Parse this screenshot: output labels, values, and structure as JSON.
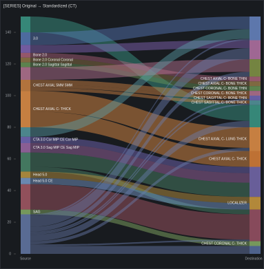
{
  "chart_data": {
    "type": "sankey",
    "title": "[SERIES] Original → Standardized (CT)",
    "columns": [
      "Source",
      "Destination"
    ],
    "ylim": [
      0,
      150
    ],
    "yticks": [
      0,
      20,
      40,
      60,
      80,
      100,
      120,
      140
    ],
    "sources": [
      {
        "name": null,
        "value": 10,
        "color": "#3fa28f"
      },
      {
        "name": "3.0",
        "value": 8,
        "color": "#5b7fbf"
      },
      {
        "name": null,
        "value": 5,
        "color": "#8a6bbf"
      },
      {
        "name": "Bone 2.0",
        "value": 3,
        "color": "#b4677e"
      },
      {
        "name": "Bone 2.0 Coronal Coronal",
        "value": 3,
        "color": "#9a7d4a"
      },
      {
        "name": "Bone 2.0 Sagittal Sagittal",
        "value": 3,
        "color": "#6e9c5a"
      },
      {
        "name": null,
        "value": 8,
        "color": "#c07b9a"
      },
      {
        "name": "CHEST AXIAL 5MM 5MM",
        "value": 7,
        "color": "#d98a45"
      },
      {
        "name": "CHEST AXIAL C- THICK",
        "value": 23,
        "color": "#f2994a"
      },
      {
        "name": null,
        "value": 6,
        "color": "#5aa0a8"
      },
      {
        "name": "CTA 3.0 Cor MIP CE Cor MIP",
        "value": 4,
        "color": "#7b6fc4"
      },
      {
        "name": "CTA 3.0 Sag MIP CE Sag MIP",
        "value": 6,
        "color": "#a86fb0"
      },
      {
        "name": null,
        "value": 12,
        "color": "#4f8f6f"
      },
      {
        "name": "Head 5.0",
        "value": 4,
        "color": "#c9a043"
      },
      {
        "name": "Head 5.0 CE",
        "value": 4,
        "color": "#7fa4d6"
      },
      {
        "name": null,
        "value": 16,
        "color": "#b05e6a"
      },
      {
        "name": "SAG",
        "value": 3,
        "color": "#8fb86a"
      },
      {
        "name": null,
        "value": 25,
        "color": "#6a7fb0"
      }
    ],
    "targets": [
      {
        "name": null,
        "value": 15,
        "color": "#6f8fd0"
      },
      {
        "name": null,
        "value": 12,
        "color": "#c27bb0"
      },
      {
        "name": null,
        "value": 11,
        "color": "#8c9f4a"
      },
      {
        "name": "CHEST AXIAL C- BONE THIN",
        "value": 3,
        "color": "#b4677e"
      },
      {
        "name": "CHEST AXIAL C- BONE THICK",
        "value": 3,
        "color": "#9a7d4a"
      },
      {
        "name": "CHEST CORONAL C- BONE THIN",
        "value": 3,
        "color": "#6e9c5a"
      },
      {
        "name": "CHEST CORONAL C- BONE THICK",
        "value": 3,
        "color": "#c07b9a"
      },
      {
        "name": "CHEST SAGITTAL C- BONE THIN",
        "value": 3,
        "color": "#7b6fc4"
      },
      {
        "name": "CHEST SAGITTAL C- BONE THICK",
        "value": 3,
        "color": "#5aa0a8"
      },
      {
        "name": null,
        "value": 14,
        "color": "#3fa28f"
      },
      {
        "name": "CHEST AXIAL C- LUNG THICK",
        "value": 15,
        "color": "#f2994a"
      },
      {
        "name": "CHEST AXIAL C- THICK",
        "value": 10,
        "color": "#e8873a"
      },
      {
        "name": null,
        "value": 19,
        "color": "#7d6fb8"
      },
      {
        "name": "LOCALIZER",
        "value": 8,
        "color": "#d9a441"
      },
      {
        "name": null,
        "value": 20,
        "color": "#a4566a"
      },
      {
        "name": "CHEST CORONAL C- THICK",
        "value": 3,
        "color": "#8fb86a"
      },
      {
        "name": null,
        "value": 5,
        "color": "#5c74a8"
      }
    ],
    "links": [
      {
        "source": 0,
        "target": 9,
        "value": 10
      },
      {
        "source": 1,
        "target": 0,
        "value": 8
      },
      {
        "source": 2,
        "target": 1,
        "value": 5
      },
      {
        "source": 3,
        "target": 3,
        "value": 3
      },
      {
        "source": 4,
        "target": 4,
        "value": 3
      },
      {
        "source": 5,
        "target": 5,
        "value": 3
      },
      {
        "source": 6,
        "target": 2,
        "value": 8
      },
      {
        "source": 7,
        "target": 6,
        "value": 3
      },
      {
        "source": 7,
        "target": 7,
        "value": 2
      },
      {
        "source": 7,
        "target": 8,
        "value": 2
      },
      {
        "source": 8,
        "target": 10,
        "value": 13
      },
      {
        "source": 8,
        "target": 11,
        "value": 10
      },
      {
        "source": 9,
        "target": 0,
        "value": 6
      },
      {
        "source": 10,
        "target": 12,
        "value": 4
      },
      {
        "source": 11,
        "target": 12,
        "value": 6
      },
      {
        "source": 12,
        "target": 12,
        "value": 9
      },
      {
        "source": 12,
        "target": 14,
        "value": 3
      },
      {
        "source": 13,
        "target": 13,
        "value": 4
      },
      {
        "source": 14,
        "target": 13,
        "value": 4
      },
      {
        "source": 15,
        "target": 14,
        "value": 16
      },
      {
        "source": 16,
        "target": 15,
        "value": 3
      },
      {
        "source": 17,
        "target": 0,
        "value": 1
      },
      {
        "source": 17,
        "target": 1,
        "value": 7
      },
      {
        "source": 17,
        "target": 2,
        "value": 3
      },
      {
        "source": 17,
        "target": 7,
        "value": 1
      },
      {
        "source": 17,
        "target": 8,
        "value": 1
      },
      {
        "source": 17,
        "target": 9,
        "value": 4
      },
      {
        "source": 17,
        "target": 10,
        "value": 2
      },
      {
        "source": 17,
        "target": 14,
        "value": 1
      },
      {
        "source": 17,
        "target": 16,
        "value": 5
      }
    ]
  }
}
